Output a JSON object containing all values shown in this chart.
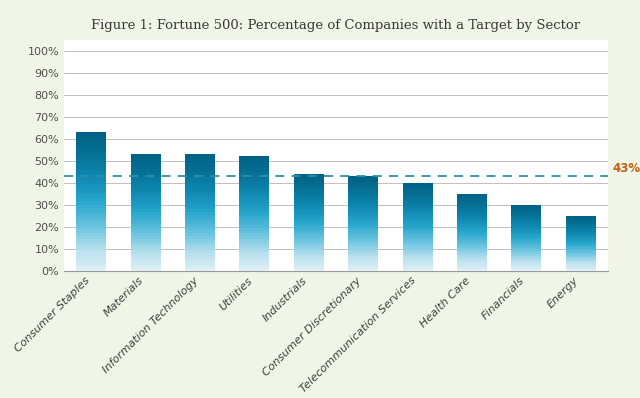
{
  "title": "Figure 1: Fortune 500: Percentage of Companies with a Target by Sector",
  "categories": [
    "Consumer Staples",
    "Materials",
    "Information Technology",
    "Utilities",
    "Industrials",
    "Consumer Discretionary",
    "Telecommunication Services",
    "Health Care",
    "Financials",
    "Energy"
  ],
  "values": [
    0.63,
    0.53,
    0.53,
    0.52,
    0.44,
    0.43,
    0.4,
    0.35,
    0.3,
    0.25
  ],
  "bar_color_top": "#006d87",
  "bar_color_mid": "#1a9bba",
  "bar_color_bottom": "#c8eaf5",
  "reference_line": 0.43,
  "reference_label": "43%",
  "reference_line_color": "#2e8fa8",
  "reference_label_color": "#c06010",
  "yticks": [
    0.0,
    0.1,
    0.2,
    0.3,
    0.4,
    0.5,
    0.6,
    0.7,
    0.8,
    0.9,
    1.0
  ],
  "ytick_labels": [
    "0%",
    "10%",
    "20%",
    "30%",
    "40%",
    "50%",
    "60%",
    "70%",
    "80%",
    "90%",
    "100%"
  ],
  "background_color": "#ffffff",
  "outer_background": "#f0f5e8",
  "grid_color": "#c0c0c0",
  "title_color": "#3a3a3a",
  "title_fontsize": 9.5,
  "tick_label_fontsize": 8.0,
  "ref_label_fontsize": 8.5,
  "bar_width": 0.55
}
